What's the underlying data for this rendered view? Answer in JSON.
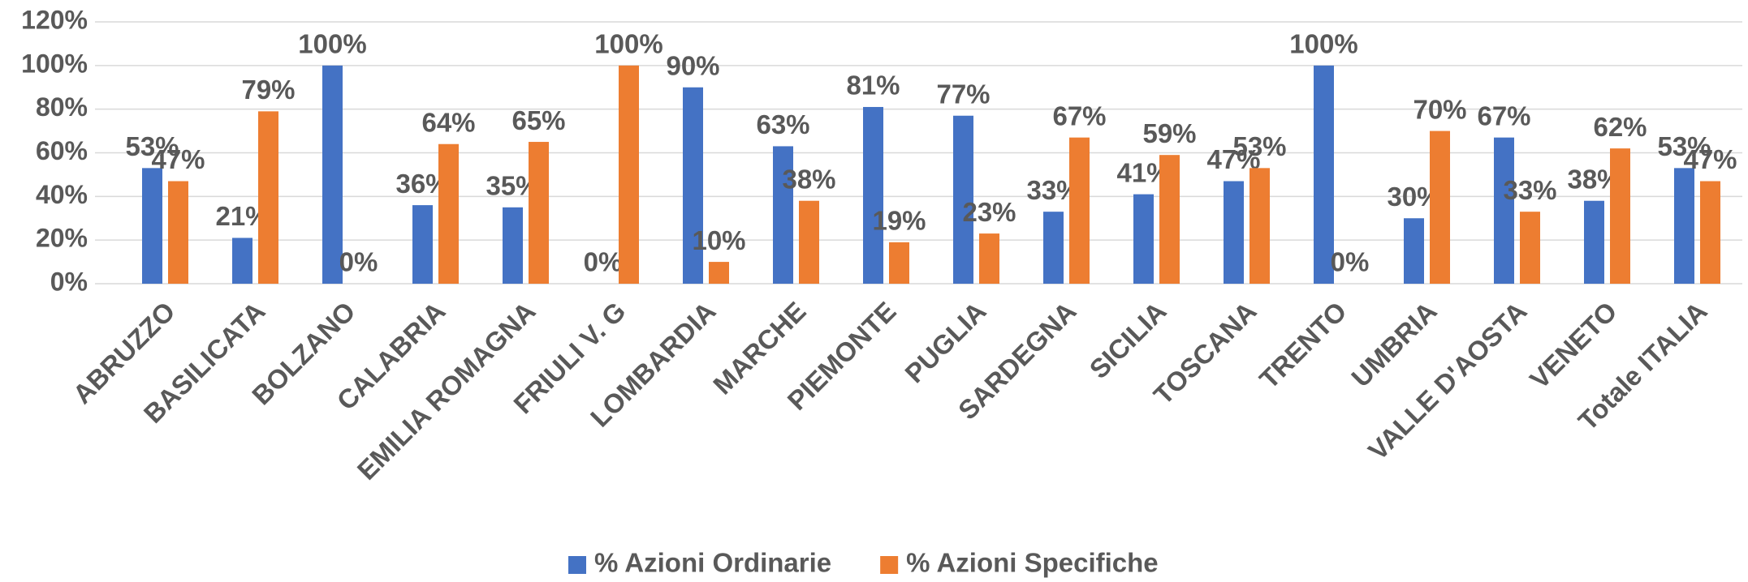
{
  "chart_data": {
    "type": "bar",
    "categories": [
      "ABRUZZO",
      "BASILICATA",
      "BOLZANO",
      "CALABRIA",
      "EMILIA ROMAGNA",
      "FRIULI V. G",
      "LOMBARDIA",
      "MARCHE",
      "PIEMONTE",
      "PUGLIA",
      "SARDEGNA",
      "SICILIA",
      "TOSCANA",
      "TRENTO",
      "UMBRIA",
      "VALLE D'AOSTA",
      "VENETO",
      "Totale ITALIA"
    ],
    "series": [
      {
        "name": "% Azioni Ordinarie",
        "color": "#4472c4",
        "values": [
          53,
          21,
          100,
          36,
          35,
          0,
          90,
          63,
          81,
          77,
          33,
          41,
          47,
          100,
          30,
          67,
          38,
          53
        ],
        "value_labels": [
          "53%",
          "21%",
          "100%",
          "36%",
          "35%",
          "0%",
          "90%",
          "63%",
          "81%",
          "77%",
          "33%",
          "41%",
          "47%",
          "100%",
          "30%",
          "67%",
          "38%",
          "53%"
        ]
      },
      {
        "name": "% Azioni Specifiche",
        "color": "#ed7d31",
        "values": [
          47,
          79,
          0,
          64,
          65,
          100,
          10,
          38,
          19,
          23,
          67,
          59,
          53,
          0,
          70,
          33,
          62,
          47
        ],
        "value_labels": [
          "47%",
          "79%",
          "0%",
          "64%",
          "65%",
          "100%",
          "10%",
          "38%",
          "19%",
          "23%",
          "67%",
          "59%",
          "53%",
          "0%",
          "70%",
          "33%",
          "62%",
          "47%"
        ]
      }
    ],
    "ylim": [
      0,
      120
    ],
    "yticks": [
      {
        "value": 0,
        "label": "0%"
      },
      {
        "value": 20,
        "label": "20%"
      },
      {
        "value": 40,
        "label": "40%"
      },
      {
        "value": 60,
        "label": "60%"
      },
      {
        "value": 80,
        "label": "80%"
      },
      {
        "value": 100,
        "label": "100%"
      },
      {
        "value": 120,
        "label": "120%"
      }
    ],
    "grid": true,
    "legend": "bottom"
  }
}
